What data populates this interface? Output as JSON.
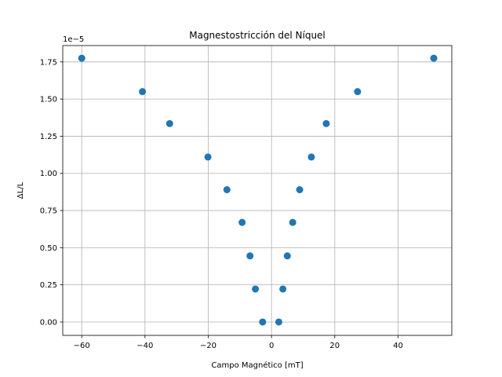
{
  "chart_data": {
    "type": "scatter",
    "title": "Magnestostricción del Níquel",
    "xlabel": "Campo Magnético [mT]",
    "ylabel": "ΔL/L",
    "y_offset_label": "1e−5",
    "xlim": [
      -66,
      57
    ],
    "ylim": [
      -0.09,
      1.86
    ],
    "x_ticks": [
      -60,
      -40,
      -20,
      0,
      20,
      40
    ],
    "x_tick_labels": [
      "−60",
      "−40",
      "−20",
      "0",
      "20",
      "40"
    ],
    "y_ticks": [
      0.0,
      0.25,
      0.5,
      0.75,
      1.0,
      1.25,
      1.5,
      1.75
    ],
    "y_tick_labels": [
      "0.00",
      "0.25",
      "0.50",
      "0.75",
      "1.00",
      "1.25",
      "1.50",
      "1.75"
    ],
    "grid": true,
    "marker_color": "#1f77b4",
    "points": [
      {
        "x": -60.0,
        "y": 1.775
      },
      {
        "x": -40.8,
        "y": 1.55
      },
      {
        "x": -32.2,
        "y": 1.335
      },
      {
        "x": -20.1,
        "y": 1.11
      },
      {
        "x": -14.1,
        "y": 0.89
      },
      {
        "x": -9.3,
        "y": 0.67
      },
      {
        "x": -6.8,
        "y": 0.445
      },
      {
        "x": -5.1,
        "y": 0.222
      },
      {
        "x": -2.8,
        "y": 0.0
      },
      {
        "x": 2.3,
        "y": 0.0
      },
      {
        "x": 3.6,
        "y": 0.222
      },
      {
        "x": 5.0,
        "y": 0.445
      },
      {
        "x": 6.7,
        "y": 0.67
      },
      {
        "x": 8.9,
        "y": 0.89
      },
      {
        "x": 12.6,
        "y": 1.11
      },
      {
        "x": 17.3,
        "y": 1.335
      },
      {
        "x": 27.2,
        "y": 1.55
      },
      {
        "x": 51.3,
        "y": 1.775
      }
    ]
  }
}
